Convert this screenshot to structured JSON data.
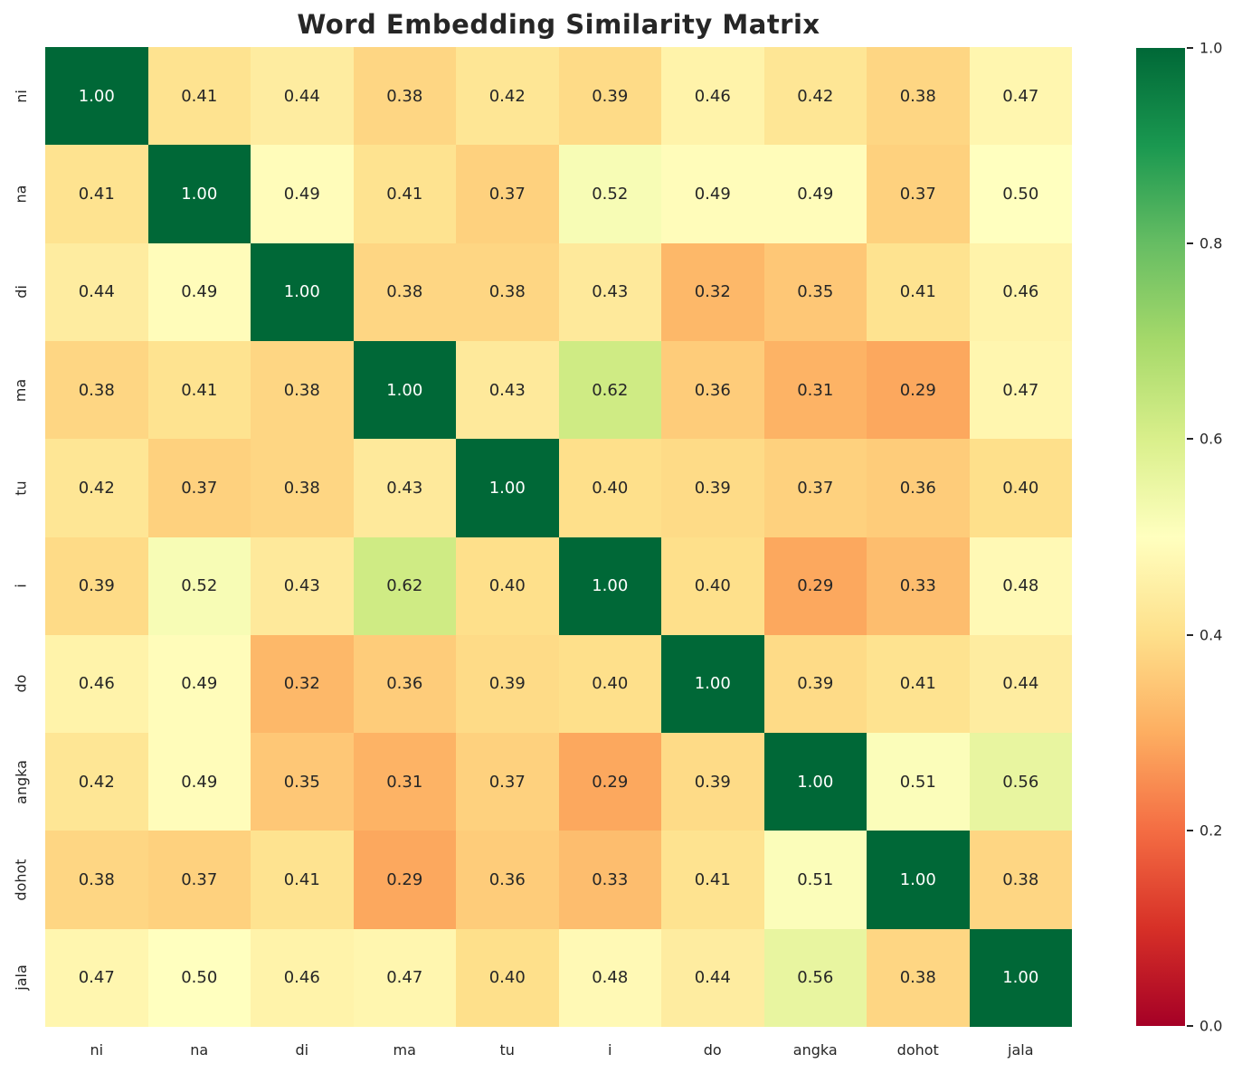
{
  "chart_data": {
    "type": "heatmap",
    "title": "Word Embedding Similarity Matrix",
    "labels": [
      "ni",
      "na",
      "di",
      "ma",
      "tu",
      "i",
      "do",
      "angka",
      "dohot",
      "jala"
    ],
    "matrix": [
      [
        1.0,
        0.41,
        0.44,
        0.38,
        0.42,
        0.39,
        0.46,
        0.42,
        0.38,
        0.47
      ],
      [
        0.41,
        1.0,
        0.49,
        0.41,
        0.37,
        0.52,
        0.49,
        0.49,
        0.37,
        0.5
      ],
      [
        0.44,
        0.49,
        1.0,
        0.38,
        0.38,
        0.43,
        0.32,
        0.35,
        0.41,
        0.46
      ],
      [
        0.38,
        0.41,
        0.38,
        1.0,
        0.43,
        0.62,
        0.36,
        0.31,
        0.29,
        0.47
      ],
      [
        0.42,
        0.37,
        0.38,
        0.43,
        1.0,
        0.4,
        0.39,
        0.37,
        0.36,
        0.4
      ],
      [
        0.39,
        0.52,
        0.43,
        0.62,
        0.4,
        1.0,
        0.4,
        0.29,
        0.33,
        0.48
      ],
      [
        0.46,
        0.49,
        0.32,
        0.36,
        0.39,
        0.4,
        1.0,
        0.39,
        0.41,
        0.44
      ],
      [
        0.42,
        0.49,
        0.35,
        0.31,
        0.37,
        0.29,
        0.39,
        1.0,
        0.51,
        0.56
      ],
      [
        0.38,
        0.37,
        0.41,
        0.29,
        0.36,
        0.33,
        0.41,
        0.51,
        1.0,
        0.38
      ],
      [
        0.47,
        0.5,
        0.46,
        0.47,
        0.4,
        0.48,
        0.44,
        0.56,
        0.38,
        1.0
      ]
    ],
    "value_decimals": 2,
    "vmin": 0.0,
    "vmax": 1.0,
    "colorbar_ticks": [
      "0.0",
      "0.2",
      "0.4",
      "0.6",
      "0.8",
      "1.0"
    ],
    "colormap_name": "RdYlGn",
    "colormap_stops": [
      "#a50026",
      "#d73027",
      "#f46d43",
      "#fdae61",
      "#fee08b",
      "#ffffbf",
      "#d9ef8b",
      "#a6d96a",
      "#66bd63",
      "#1a9850",
      "#006837"
    ],
    "annotation_color_dark": "#262626",
    "annotation_color_light": "#ffffff",
    "legend_position": "right",
    "grid": false
  }
}
